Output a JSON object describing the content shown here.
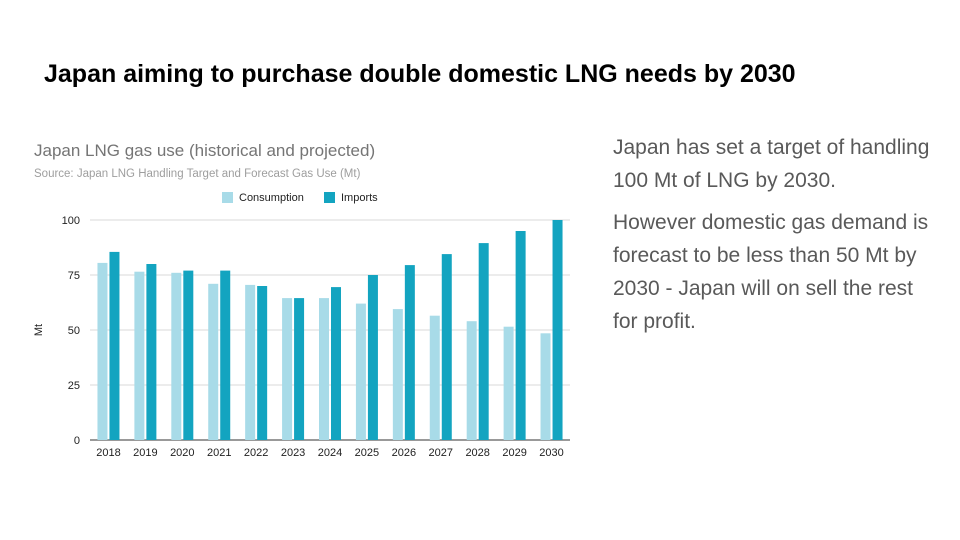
{
  "slide": {
    "title": "Japan aiming to purchase double domestic LNG needs by 2030",
    "paragraphs": [
      "Japan has set a target of handling 100 Mt of LNG by 2030.",
      "However domestic gas demand is forecast to be less than 50 Mt by 2030 - Japan will on sell the rest for profit."
    ]
  },
  "colors": {
    "consumption": "#a8dbe8",
    "imports": "#13a4c0"
  },
  "chart_data": {
    "type": "bar",
    "title": "Japan LNG gas use (historical and projected)",
    "subtitle": "Source: Japan LNG Handling Target and Forecast Gas Use (Mt)",
    "xlabel": "",
    "ylabel": "Mt",
    "ylim": [
      0,
      100
    ],
    "yticks": [
      0,
      25,
      50,
      75,
      100
    ],
    "grid": true,
    "legend_position": "top",
    "categories": [
      "2018",
      "2019",
      "2020",
      "2021",
      "2022",
      "2023",
      "2024",
      "2025",
      "2026",
      "2027",
      "2028",
      "2029",
      "2030"
    ],
    "series": [
      {
        "name": "Consumption",
        "values": [
          80.5,
          76.5,
          76,
          71,
          70.5,
          64.5,
          64.5,
          62,
          59.5,
          56.5,
          54,
          51.5,
          48.5
        ]
      },
      {
        "name": "Imports",
        "values": [
          85.5,
          80,
          77,
          77,
          70,
          64.5,
          69.5,
          75,
          79.5,
          84.5,
          89.5,
          95,
          100
        ]
      }
    ]
  }
}
